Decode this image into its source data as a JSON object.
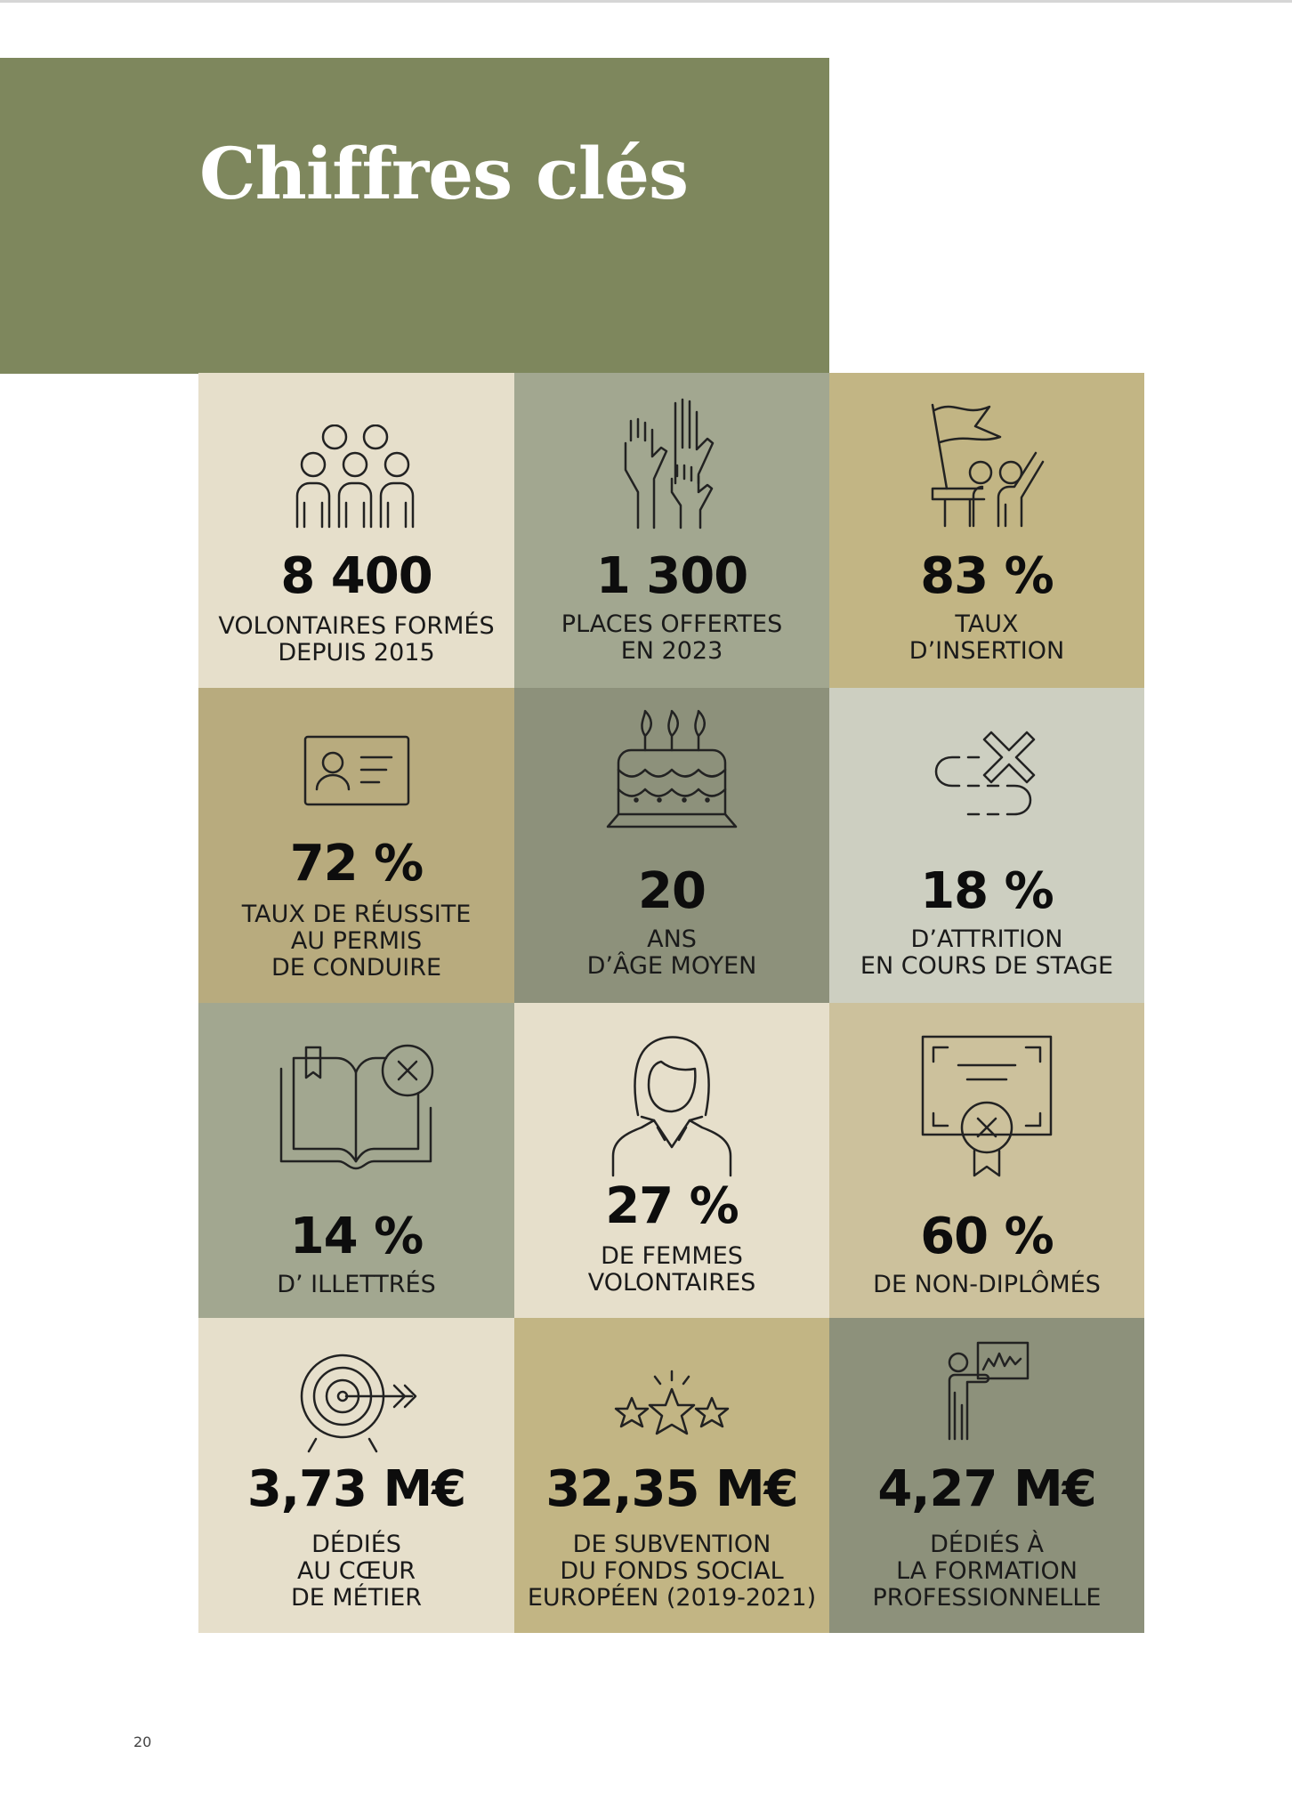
{
  "page": {
    "title": "Chiffres clés",
    "page_number": "20"
  },
  "colors": {
    "header": "#7e875d",
    "cream": "#e6dfcb",
    "sage": "#a2a790",
    "gold": "#c2b584",
    "khaki": "#b8ab7e",
    "olive_gray": "#8d917b",
    "light_gray": "#cdcfc1",
    "sand": "#ccc19c"
  },
  "stats": [
    {
      "value": "8 400",
      "label": "VOLONTAIRES FORMÉS\nDEPUIS 2015",
      "icon": "group-of-people-icon",
      "color": "#e6dfcb"
    },
    {
      "value": "1 300",
      "label": "PLACES OFFERTES\nEN 2023",
      "icon": "raised-hands-icon",
      "color": "#a2a790"
    },
    {
      "value": "83 %",
      "label": "TAUX\nD’INSERTION",
      "icon": "people-with-flag-icon",
      "color": "#c2b584"
    },
    {
      "value": "72 %",
      "label": "TAUX DE RÉUSSITE\nAU PERMIS\nDE CONDUIRE",
      "icon": "id-card-icon",
      "color": "#b8ab7e"
    },
    {
      "value": "20",
      "label": "ANS\nD’ÂGE MOYEN",
      "icon": "birthday-cake-icon",
      "color": "#8d917b"
    },
    {
      "value": "18 %",
      "label": "D’ATTRITION\nEN COURS DE STAGE",
      "icon": "dashed-path-cross-icon",
      "color": "#cdcfc1"
    },
    {
      "value": "14 %",
      "label": "D’ ILLETTRÉS",
      "icon": "book-cross-icon",
      "color": "#a2a790"
    },
    {
      "value": "27 %",
      "label": "DE FEMMES\nVOLONTAIRES",
      "icon": "woman-icon",
      "color": "#e6dfcb"
    },
    {
      "value": "60 %",
      "label": "DE NON-DIPLÔMÉS",
      "icon": "certificate-cross-icon",
      "color": "#ccc19c"
    },
    {
      "value": "3,73 M€",
      "label": "DÉDIÉS\nAU CŒUR\nDE MÉTIER",
      "icon": "target-arrow-icon",
      "color": "#e6dfcb"
    },
    {
      "value": "32,35 M€",
      "label": "DE SUBVENTION\nDU FONDS SOCIAL\nEUROPÉEN (2019-2021)",
      "icon": "three-stars-icon",
      "color": "#c2b584"
    },
    {
      "value": "4,27 M€",
      "label": "DÉDIÉS À\nLA FORMATION\nPROFESSIONNELLE",
      "icon": "presenter-board-icon",
      "color": "#8d917b"
    }
  ]
}
